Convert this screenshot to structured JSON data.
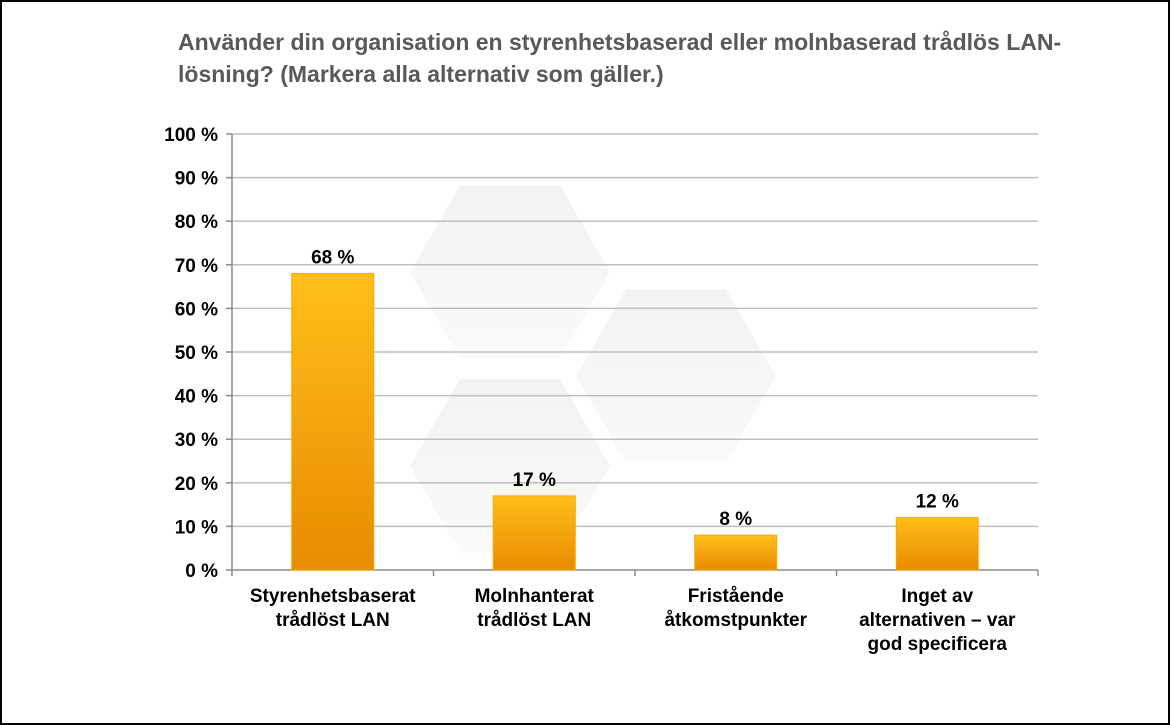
{
  "chart_data": {
    "type": "bar",
    "title": "Använder din organisation en styrenhetsbaserad eller molnbaserad trådlös LAN-lösning? (Markera alla alternativ som gäller.)",
    "categories": [
      [
        "Styrenhetsbaserat",
        "trådlöst LAN"
      ],
      [
        "Molnhanterat",
        "trådlöst LAN"
      ],
      [
        "Fristående",
        "åtkomstpunkter"
      ],
      [
        "Inget av",
        "alternativen – var",
        "god specificera"
      ]
    ],
    "values": [
      68,
      17,
      8,
      12
    ],
    "data_labels": [
      "68 %",
      "17 %",
      "8 %",
      "12 %"
    ],
    "y_ticks": [
      "0 %",
      "10 %",
      "20 %",
      "30 %",
      "40 %",
      "50 %",
      "60 %",
      "70 %",
      "80 %",
      "90 %",
      "100 %"
    ],
    "ylim": [
      0,
      100
    ],
    "grid": true,
    "colors": {
      "bar_top": "#ffbf1a",
      "bar_bottom": "#e88b00",
      "grid": "#bfbfbf",
      "axis": "#8c8c8c"
    }
  }
}
